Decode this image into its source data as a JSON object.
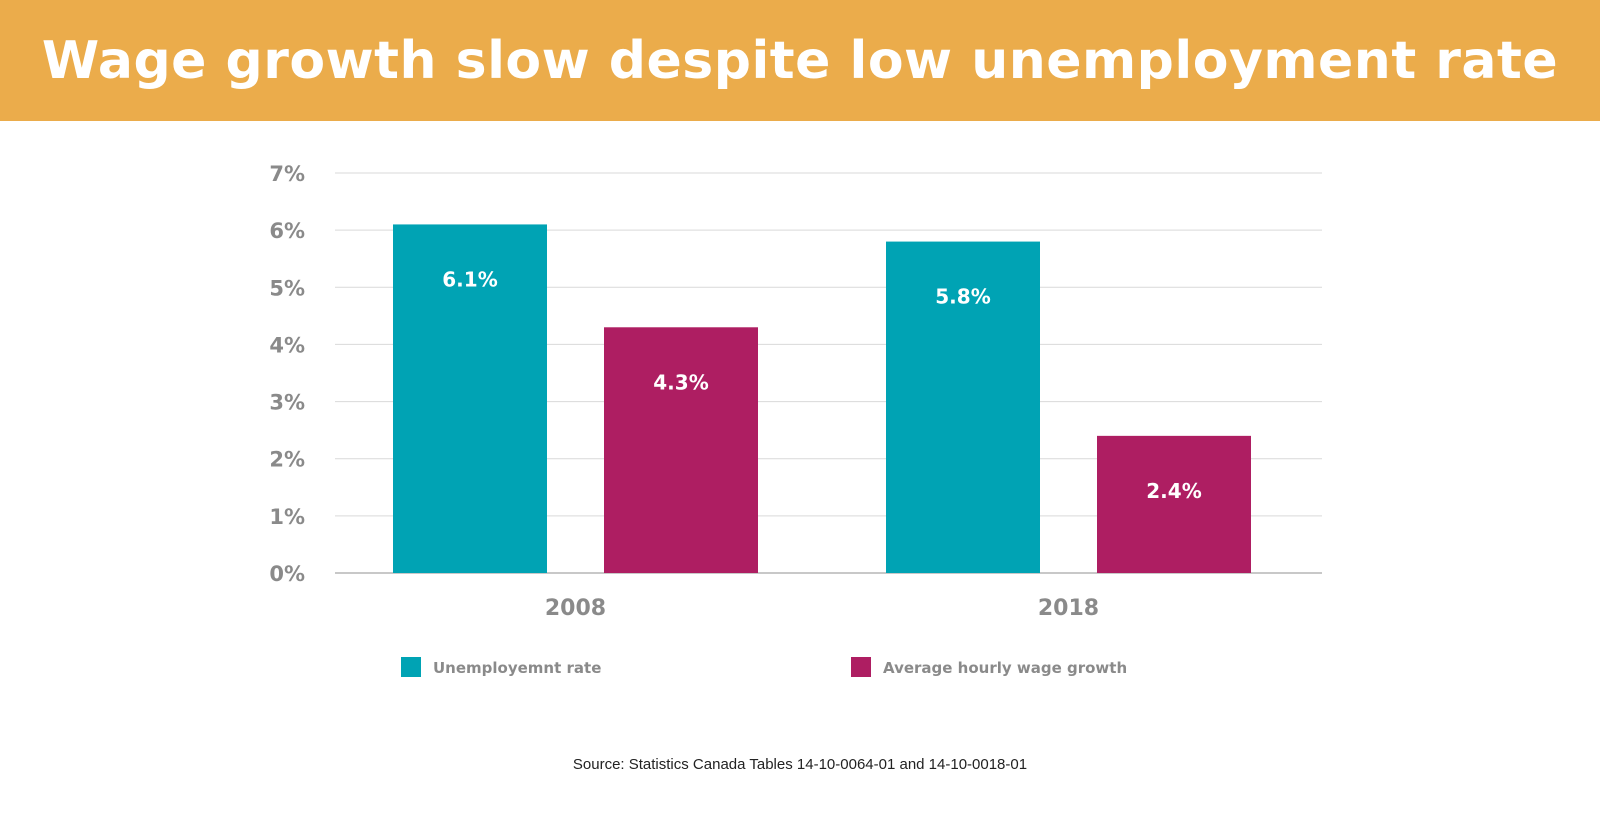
{
  "colors": {
    "banner": "#EBAC4B",
    "series_unemployment": "#00A3B4",
    "series_wage": "#AE1E62",
    "gridline": "#d9d9d9",
    "axis_text": "#8a8a8a"
  },
  "chart_data": {
    "type": "bar",
    "title": "Wage growth slow despite low unemployment rate",
    "categories": [
      "2008",
      "2018"
    ],
    "series": [
      {
        "name": "Unemployemnt rate",
        "values": [
          6.1,
          5.8
        ],
        "labels": [
          "6.1%",
          "5.8%"
        ]
      },
      {
        "name": "Average hourly wage growth",
        "values": [
          4.3,
          2.4
        ],
        "labels": [
          "4.3%",
          "2.4%"
        ]
      }
    ],
    "ylim": [
      0,
      7
    ],
    "yticks": [
      {
        "value": 0,
        "label": "0%"
      },
      {
        "value": 1,
        "label": "1%"
      },
      {
        "value": 2,
        "label": "2%"
      },
      {
        "value": 3,
        "label": "3%"
      },
      {
        "value": 4,
        "label": "4%"
      },
      {
        "value": 5,
        "label": "5%"
      },
      {
        "value": 6,
        "label": "6%"
      },
      {
        "value": 7,
        "label": "7%"
      }
    ],
    "grid": true,
    "legend": "bottom",
    "source": "Source: Statistics Canada Tables 14-10-0064-01 and 14-10-0018-01"
  }
}
